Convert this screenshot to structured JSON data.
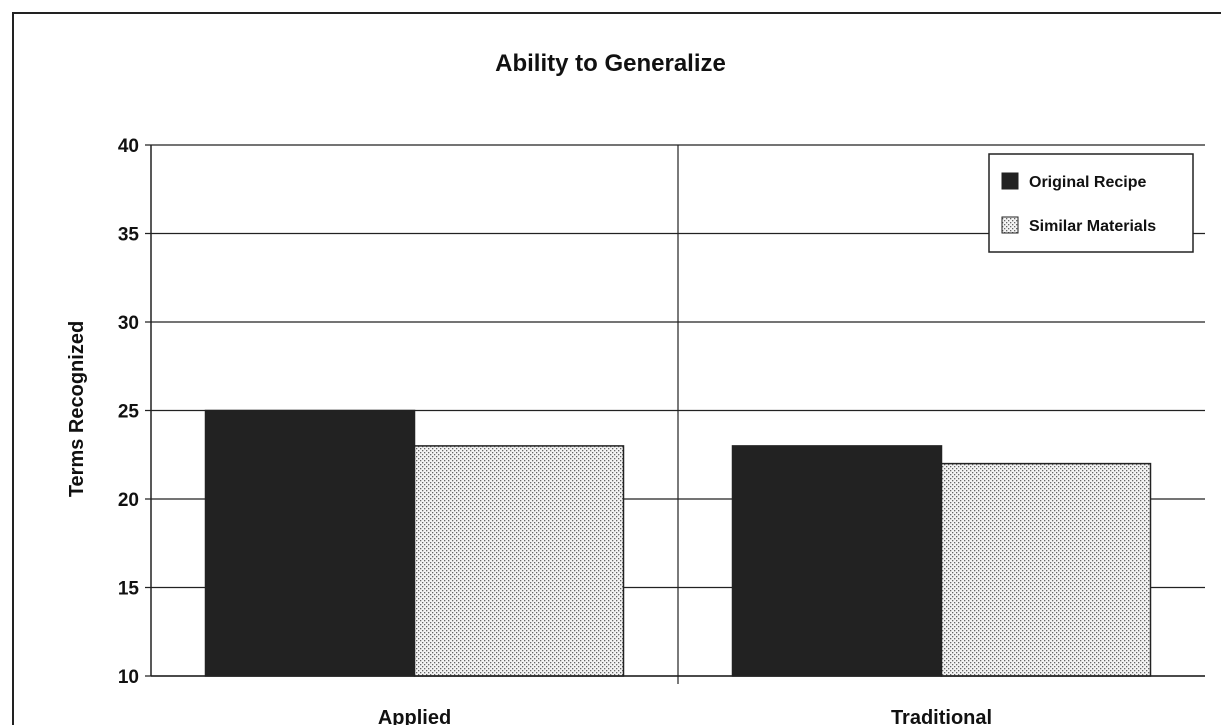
{
  "chart_data": {
    "type": "bar",
    "title": "Ability to Generalize",
    "xlabel": "",
    "ylabel": "Terms Recognized",
    "categories": [
      "Applied",
      "Traditional"
    ],
    "series": [
      {
        "name": "Original Recipe",
        "values": [
          25,
          23
        ],
        "color": "#222222",
        "pattern": "solid"
      },
      {
        "name": "Similar Materials",
        "values": [
          23,
          22
        ],
        "color": "#eeeeee",
        "pattern": "dotted"
      }
    ],
    "ylim": [
      10,
      40
    ],
    "yticks": [
      10,
      15,
      20,
      25,
      30,
      35,
      40
    ],
    "grid": true,
    "legend_position": "top-right"
  }
}
